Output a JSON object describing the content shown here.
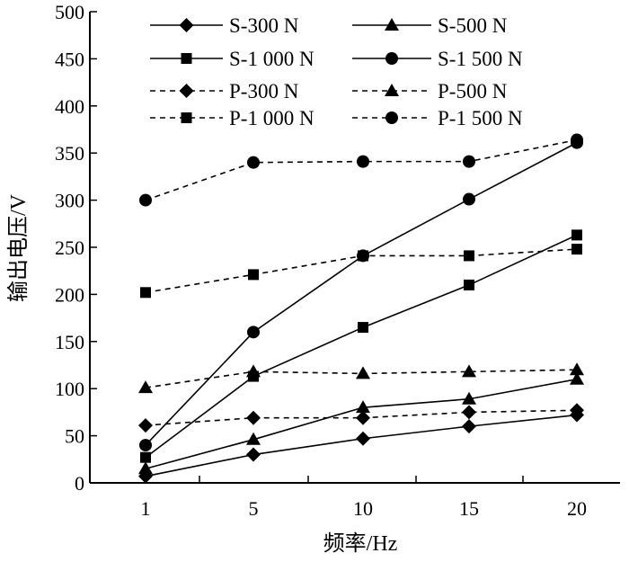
{
  "chart_data": {
    "type": "line",
    "title": "",
    "xlabel": "频率/Hz",
    "ylabel": "输出电压/V",
    "x": [
      1,
      5,
      10,
      15,
      20
    ],
    "x_tick_labels": [
      "1",
      "5",
      "10",
      "15",
      "20"
    ],
    "ylim": [
      0,
      500
    ],
    "y_ticks": [
      0,
      50,
      100,
      150,
      200,
      250,
      300,
      350,
      400,
      450,
      500
    ],
    "y_tick_labels": [
      "0",
      "50",
      "100",
      "150",
      "200",
      "250",
      "300",
      "350",
      "400",
      "450",
      "500"
    ],
    "grid": false,
    "legend_position": "top",
    "series": [
      {
        "name": "S-300 N",
        "line": "solid",
        "marker": "diamond",
        "values": [
          7,
          30,
          47,
          60,
          72
        ]
      },
      {
        "name": "S-500 N",
        "line": "solid",
        "marker": "triangle",
        "values": [
          15,
          46,
          80,
          89,
          110
        ]
      },
      {
        "name": "S-1 000 N",
        "line": "solid",
        "marker": "square",
        "values": [
          27,
          113,
          165,
          210,
          263
        ]
      },
      {
        "name": "S-1 500 N",
        "line": "solid",
        "marker": "circle",
        "values": [
          40,
          160,
          241,
          301,
          361
        ]
      },
      {
        "name": "P-300 N",
        "line": "dashed",
        "marker": "diamond",
        "values": [
          61,
          69,
          69,
          75,
          77
        ]
      },
      {
        "name": "P-500 N",
        "line": "dashed",
        "marker": "triangle",
        "values": [
          101,
          118,
          116,
          118,
          120
        ]
      },
      {
        "name": "P-1 000 N",
        "line": "dashed",
        "marker": "square",
        "values": [
          202,
          221,
          241,
          241,
          248
        ]
      },
      {
        "name": "P-1 500 N",
        "line": "dashed",
        "marker": "circle",
        "values": [
          300,
          340,
          341,
          341,
          364
        ]
      }
    ]
  }
}
